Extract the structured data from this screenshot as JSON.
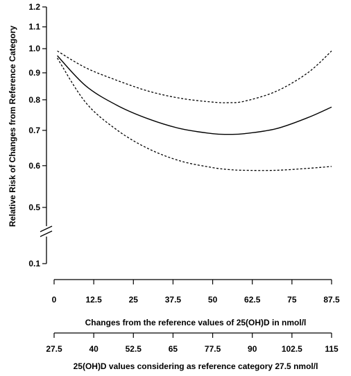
{
  "chart_data": {
    "type": "line",
    "ylabel": "Relative Risk of Changes from Reference Category",
    "xlabel": "Changes from the reference values of 25(OH)D in nmol/l",
    "x2label": "25(OH)D values considering as reference category 27.5 nmol/l",
    "y_scale": "log",
    "y_axis_break": true,
    "grid": false,
    "yticks_upper": [
      {
        "value": 0.5,
        "label": "0.5"
      },
      {
        "value": 0.6,
        "label": "0.6"
      },
      {
        "value": 0.7,
        "label": "0.7"
      },
      {
        "value": 0.8,
        "label": "0.8"
      },
      {
        "value": 0.9,
        "label": "0.9"
      },
      {
        "value": 1.0,
        "label": "1.0"
      },
      {
        "value": 1.1,
        "label": "1.1"
      },
      {
        "value": 1.2,
        "label": "1.2"
      }
    ],
    "yticks_lower": [
      {
        "value": 0.1,
        "label": "0.1"
      }
    ],
    "xticks": [
      {
        "value": 0,
        "label": "0"
      },
      {
        "value": 12.5,
        "label": "12.5"
      },
      {
        "value": 25,
        "label": "25"
      },
      {
        "value": 37.5,
        "label": "37.5"
      },
      {
        "value": 50,
        "label": "50"
      },
      {
        "value": 62.5,
        "label": "62.5"
      },
      {
        "value": 75,
        "label": "75"
      },
      {
        "value": 87.5,
        "label": "87.5"
      }
    ],
    "x2ticks": [
      {
        "value": 27.5,
        "label": "27.5"
      },
      {
        "value": 40,
        "label": "40"
      },
      {
        "value": 52.5,
        "label": "52.5"
      },
      {
        "value": 65,
        "label": "65"
      },
      {
        "value": 77.5,
        "label": "77.5"
      },
      {
        "value": 90,
        "label": "90"
      },
      {
        "value": 102.5,
        "label": "102.5"
      },
      {
        "value": 115,
        "label": "115"
      }
    ],
    "xlim": [
      0,
      87.5
    ],
    "series": [
      {
        "style": "solid",
        "x": [
          1,
          10,
          20,
          30,
          40,
          50,
          55,
          60,
          70,
          80,
          87.5
        ],
        "y": [
          0.97,
          0.85,
          0.78,
          0.735,
          0.705,
          0.69,
          0.688,
          0.69,
          0.705,
          0.74,
          0.775
        ]
      },
      {
        "style": "dotted",
        "x": [
          1,
          10,
          20,
          30,
          40,
          50,
          55,
          60,
          70,
          80,
          87.5
        ],
        "y": [
          0.99,
          0.92,
          0.87,
          0.83,
          0.805,
          0.792,
          0.79,
          0.795,
          0.83,
          0.9,
          0.99
        ]
      },
      {
        "style": "dotted",
        "x": [
          1,
          10,
          20,
          30,
          40,
          50,
          55,
          60,
          70,
          80,
          87.5
        ],
        "y": [
          0.96,
          0.79,
          0.7,
          0.645,
          0.612,
          0.595,
          0.59,
          0.588,
          0.588,
          0.593,
          0.598
        ]
      }
    ]
  }
}
